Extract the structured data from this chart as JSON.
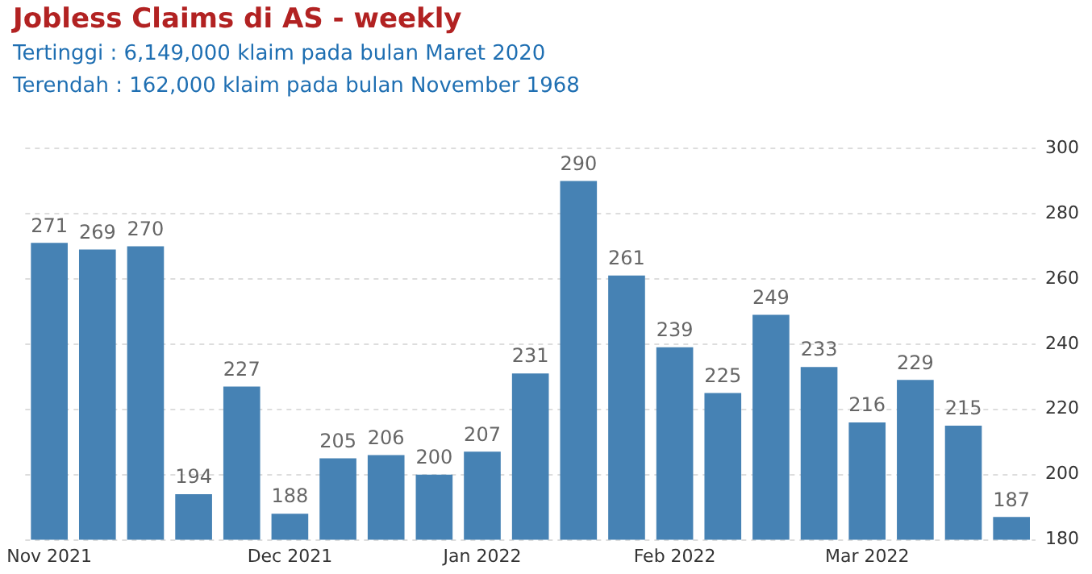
{
  "chart_data": {
    "type": "bar",
    "title": "Jobless Claims di AS - weekly",
    "annotations": [
      "Tertinggi : 6,149,000 klaim pada bulan Maret 2020",
      "Terendah : 162,000 klaim pada bulan November 1968"
    ],
    "categories": [
      "Nov 2021",
      null,
      null,
      null,
      null,
      "Dec 2021",
      null,
      null,
      null,
      "Jan 2022",
      null,
      null,
      null,
      "Feb 2022",
      null,
      null,
      null,
      "Mar 2022",
      null,
      null,
      null
    ],
    "values": [
      271,
      269,
      270,
      194,
      227,
      188,
      205,
      206,
      200,
      207,
      231,
      290,
      261,
      239,
      225,
      249,
      233,
      216,
      229,
      215,
      187
    ],
    "color": "#4682b4",
    "ylim": [
      180,
      300
    ],
    "yticks": [
      180,
      200,
      220,
      240,
      260,
      280,
      300
    ],
    "grid": "y",
    "data_labels": true
  }
}
